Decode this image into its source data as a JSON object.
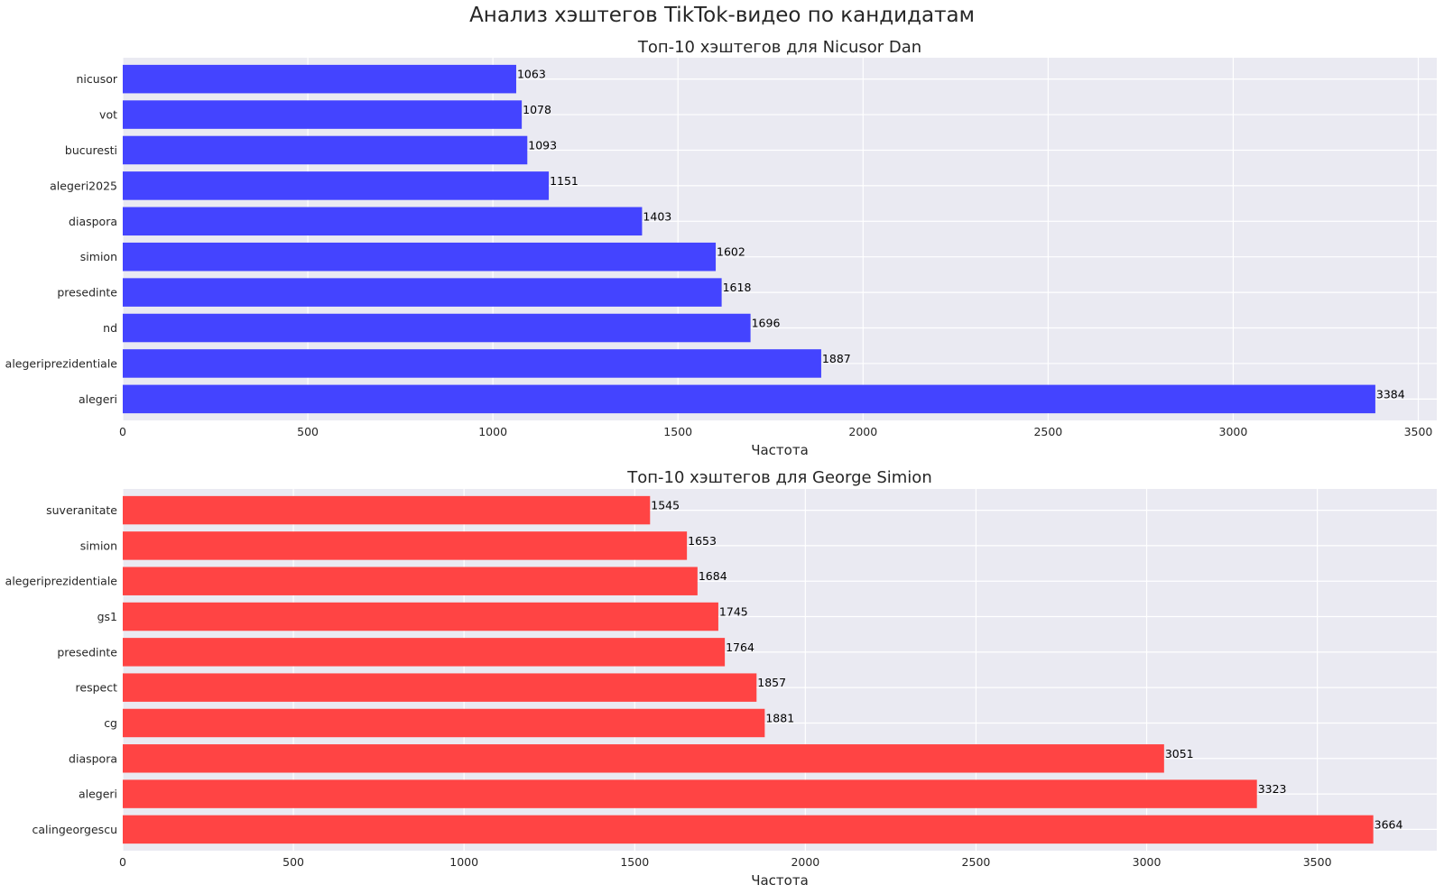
{
  "suptitle": "Анализ хэштегов TikTok-видео по кандидатам",
  "chart_data": [
    {
      "type": "bar",
      "orientation": "horizontal",
      "title": "Топ-10 хэштегов для Nicusor Dan",
      "xlabel": "Частота",
      "ylabel": "",
      "color": "#4444FF",
      "xlim": [
        0,
        3550
      ],
      "xticks": [
        0,
        500,
        1000,
        1500,
        2000,
        2500,
        3000,
        3500
      ],
      "grid": true,
      "categories": [
        "nicusor",
        "vot",
        "bucuresti",
        "alegeri2025",
        "diaspora",
        "simion",
        "presedinte",
        "nd",
        "alegeriprezidentiale",
        "alegeri"
      ],
      "values": [
        1063,
        1078,
        1093,
        1151,
        1403,
        1602,
        1618,
        1696,
        1887,
        3384
      ]
    },
    {
      "type": "bar",
      "orientation": "horizontal",
      "title": "Топ-10 хэштегов для George Simion",
      "xlabel": "Частота",
      "ylabel": "",
      "color": "#FF4444",
      "xlim": [
        0,
        3850
      ],
      "xticks": [
        0,
        500,
        1000,
        1500,
        2000,
        2500,
        3000,
        3500
      ],
      "grid": true,
      "categories": [
        "suveranitate",
        "simion",
        "alegeriprezidentiale",
        "gs1",
        "presedinte",
        "respect",
        "cg",
        "diaspora",
        "alegeri",
        "calingeorgescu"
      ],
      "values": [
        1545,
        1653,
        1684,
        1745,
        1764,
        1857,
        1881,
        3051,
        3323,
        3664
      ]
    }
  ]
}
